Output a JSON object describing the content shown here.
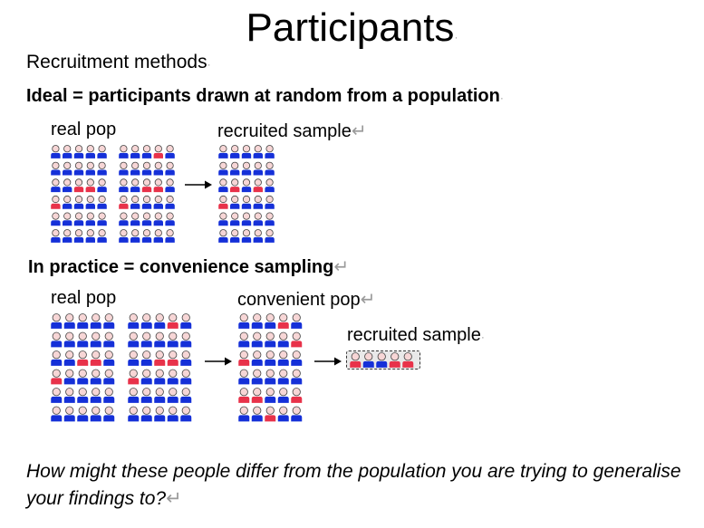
{
  "slide": {
    "title": "Participants",
    "recruitment_heading": "Recruitment methods",
    "ideal_text": "Ideal = participants drawn at random from a population",
    "practice_text": "In practice = convenience sampling",
    "question_text": "How might these people differ from the population you are trying to generalise your findings to?",
    "paragraph_mark": "↵",
    "line_mark": "·"
  },
  "ideal_diagram": {
    "real_pop_label": "real pop",
    "recruited_sample_label": "recruited sample"
  },
  "practice_diagram": {
    "real_pop_label": "real pop",
    "convenient_pop_label": "convenient pop",
    "recruited_sample_label": "recruited sample"
  },
  "colors": {
    "blue_body": "#1530d8",
    "red_body": "#e8324a",
    "head_fill": "#f7d6d6",
    "head_stroke": "#444444",
    "sample_box_fill": "#e9e9e9"
  },
  "figure_grids": {
    "ideal_real_left": [
      "bbbbb",
      "bbbbb",
      "bbrrb",
      "rbbbb",
      "bbbbb",
      "bbbbb"
    ],
    "ideal_real_right": [
      "bbbrb",
      "bbbbb",
      "bbrrb",
      "rbbbb",
      "bbbbb",
      "bbbbb"
    ],
    "ideal_sample": [
      "bbbbb",
      "bbbbb",
      "brbrb",
      "rbbbb",
      "bbbbb",
      "bbbbb"
    ],
    "practice_real_left": [
      "bbbbb",
      "bbbbb",
      "bbrrb",
      "rbbbb",
      "bbbbb",
      "bbbbb"
    ],
    "practice_real_right": [
      "bbbrb",
      "bbbbb",
      "bbrrb",
      "rbbbb",
      "bbbbb",
      "bbbbb"
    ],
    "practice_convenient": [
      "bbbrb",
      "bbbbr",
      "rbbbb",
      "bbbbb",
      "rrbbr",
      "bbrbb"
    ],
    "practice_sample": [
      "rbbrr"
    ]
  }
}
